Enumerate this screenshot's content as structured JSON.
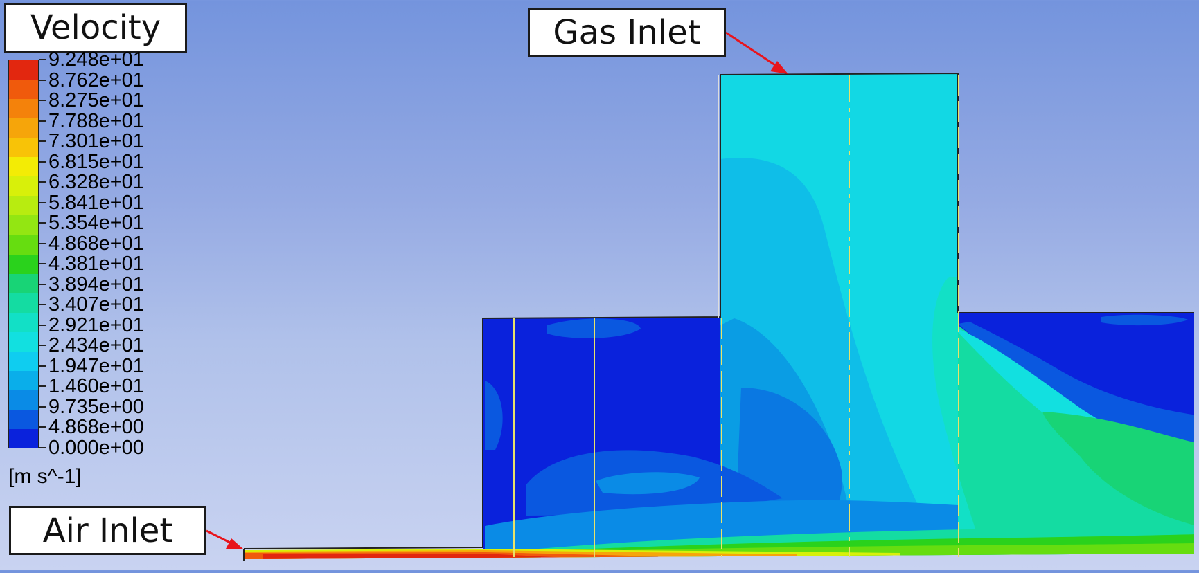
{
  "legend": {
    "title": "Velocity",
    "unit": "[m s^-1]",
    "ticks": [
      "9.248e+01",
      "8.762e+01",
      "8.275e+01",
      "7.788e+01",
      "7.301e+01",
      "6.815e+01",
      "6.328e+01",
      "5.841e+01",
      "5.354e+01",
      "4.868e+01",
      "4.381e+01",
      "3.894e+01",
      "3.407e+01",
      "2.921e+01",
      "2.434e+01",
      "1.947e+01",
      "1.460e+01",
      "9.735e+00",
      "4.868e+00",
      "0.000e+00"
    ],
    "colors_top_to_bottom": [
      "#e2270f",
      "#f05a0c",
      "#f4820b",
      "#f6a50a",
      "#f8c307",
      "#f3ec05",
      "#d8f00a",
      "#b8ec10",
      "#93e612",
      "#66dd10",
      "#2ad21c",
      "#18d476",
      "#14dca2",
      "#12e0c6",
      "#12e0e0",
      "#0fcdf0",
      "#0aaeea",
      "#0a8be6",
      "#0a58e0",
      "#0a22dc"
    ]
  },
  "annotations": {
    "gas_inlet": "Gas Inlet",
    "air_inlet": "Air Inlet"
  },
  "colors": {
    "background_top": "#7494dd",
    "background_bottom": "#c9d3f1",
    "arrow": "#e8141c",
    "slice_line": "#e8e26a"
  }
}
